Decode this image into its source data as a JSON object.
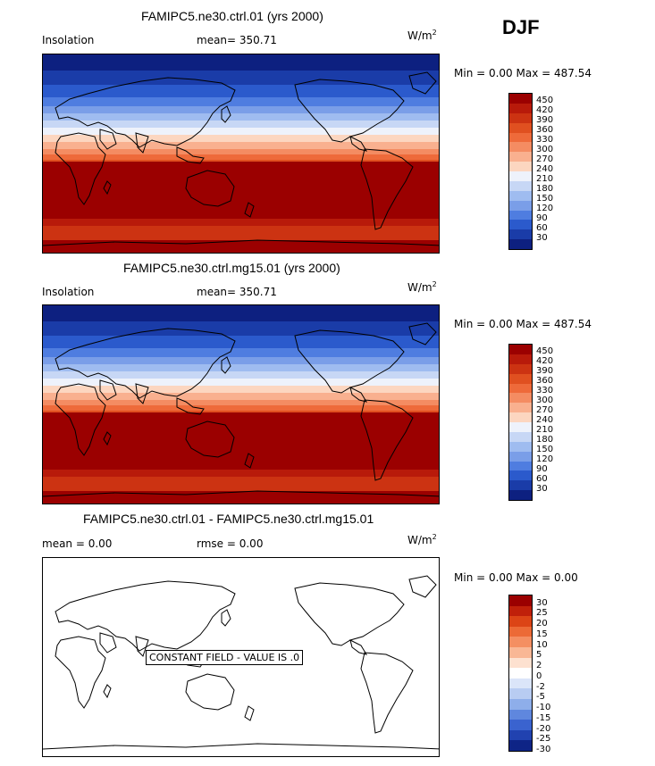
{
  "season": "DJF",
  "units_base": "W/m",
  "units_sup": "2",
  "panels": [
    {
      "title": "FAMIPC5.ne30.ctrl.01 (yrs 2000)",
      "left_label": "Insolation",
      "mid_label": "mean=  350.71",
      "minmax": "Min =     0.00  Max  =  487.54",
      "colorbar_ticks": [
        "450",
        "420",
        "390",
        "360",
        "330",
        "300",
        "270",
        "240",
        "210",
        "180",
        "150",
        "120",
        "90",
        "60",
        "30"
      ]
    },
    {
      "title": "FAMIPC5.ne30.ctrl.mg15.01 (yrs 2000)",
      "left_label": "Insolation",
      "mid_label": "mean=  350.71",
      "minmax": "Min =     0.00  Max  =  487.54",
      "colorbar_ticks": [
        "450",
        "420",
        "390",
        "360",
        "330",
        "300",
        "270",
        "240",
        "210",
        "180",
        "150",
        "120",
        "90",
        "60",
        "30"
      ]
    },
    {
      "title": "FAMIPC5.ne30.ctrl.01 - FAMIPC5.ne30.ctrl.mg15.01",
      "left_label": "mean =     0.00",
      "mid_label": "rmse =     0.00",
      "minmax": "Min =     0.00  Max  =     0.00",
      "constant_label": "CONSTANT FIELD - VALUE IS .0",
      "colorbar_ticks": [
        "30",
        "25",
        "20",
        "15",
        "10",
        "5",
        "2",
        "0",
        "-2",
        "-5",
        "-10",
        "-15",
        "-20",
        "-25",
        "-30"
      ]
    }
  ],
  "colors": {
    "abs_scale": [
      "#9b0000",
      "#b81a0a",
      "#cc3312",
      "#e05020",
      "#ee6a3a",
      "#f48c62",
      "#f9b08f",
      "#fcd6c0",
      "#eef2fb",
      "#c7d7f5",
      "#9fbcf0",
      "#7a9ee8",
      "#4f7de0",
      "#2b5acc",
      "#1a3ca8",
      "#0d2080"
    ],
    "diff_scale": [
      "#9b0000",
      "#c0200a",
      "#dc4416",
      "#ec6a36",
      "#f48f62",
      "#f9b795",
      "#fde1d0",
      "#ffffff",
      "#dbe5f9",
      "#b8ccf2",
      "#8eaeea",
      "#5f87de",
      "#3a63cf",
      "#2142b0",
      "#0e2486"
    ]
  }
}
